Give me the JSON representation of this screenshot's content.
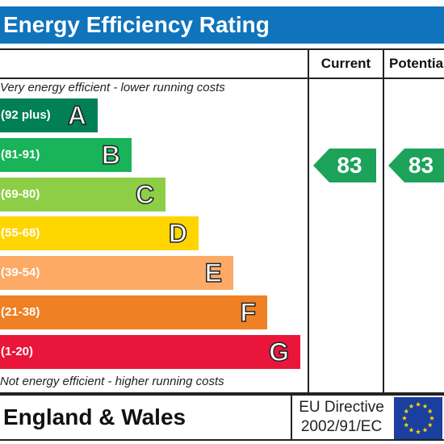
{
  "title": "Energy Efficiency Rating",
  "columns": {
    "current": "Current",
    "potential": "Potential"
  },
  "notes": {
    "top": "Very energy efficient - lower running costs",
    "bottom": "Not energy efficient - higher running costs"
  },
  "bands": [
    {
      "letter": "A",
      "range": "(92 plus)",
      "color": "#008054"
    },
    {
      "letter": "B",
      "range": "(81-91)",
      "color": "#19b459"
    },
    {
      "letter": "C",
      "range": "(69-80)",
      "color": "#8dce46"
    },
    {
      "letter": "D",
      "range": "(55-68)",
      "color": "#ffd500"
    },
    {
      "letter": "E",
      "range": "(39-54)",
      "color": "#fcaa65"
    },
    {
      "letter": "F",
      "range": "(21-38)",
      "color": "#ef8023"
    },
    {
      "letter": "G",
      "range": "(1-20)",
      "color": "#e9153b"
    }
  ],
  "ratings": {
    "current": "83",
    "potential": "83",
    "arrow_color": "#1ca259"
  },
  "footer": {
    "region": "England & Wales",
    "directive_line1": "EU Directive",
    "directive_line2": "2002/91/EC",
    "flag_icon": "eu-flag-icon"
  }
}
